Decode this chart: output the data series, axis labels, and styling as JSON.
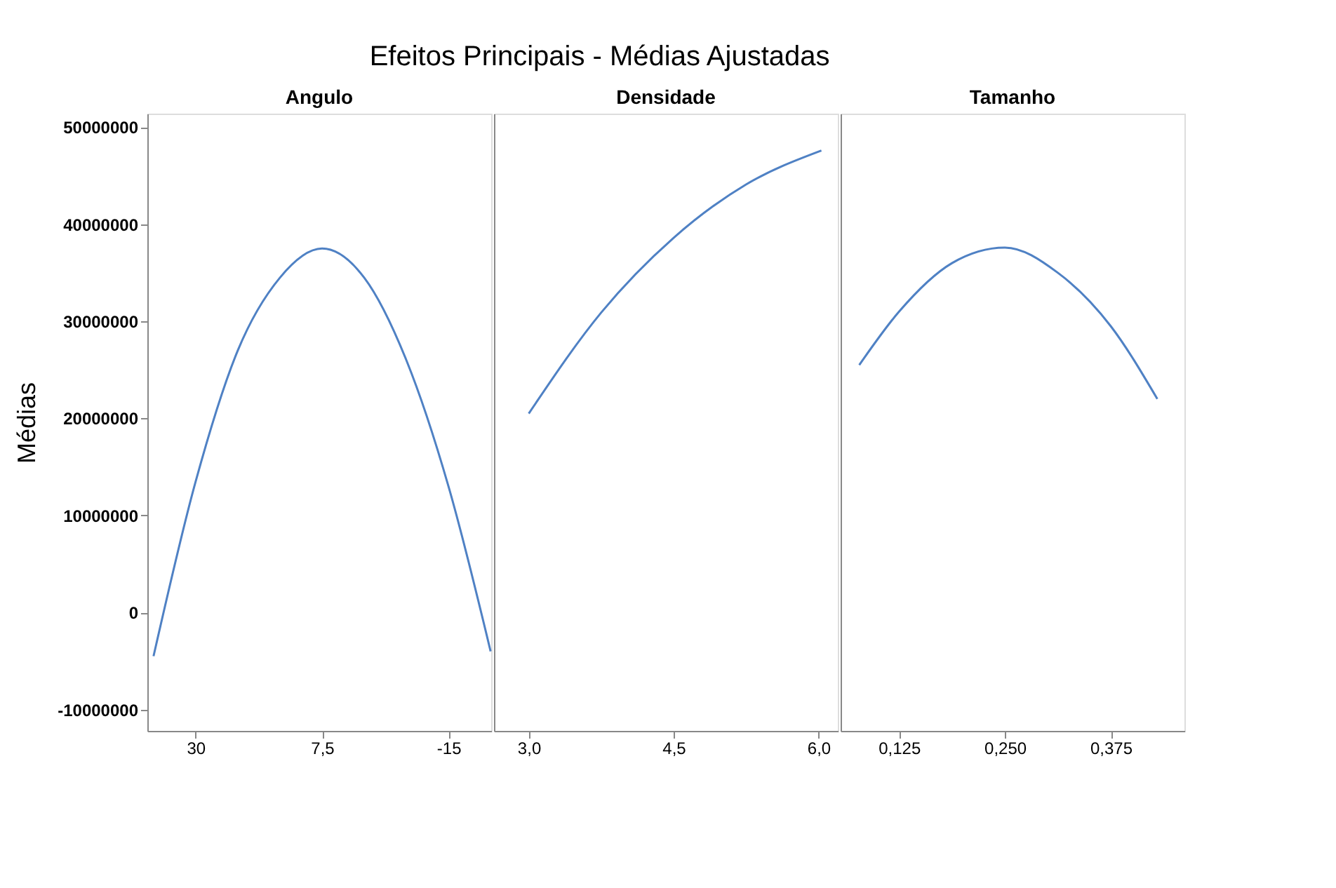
{
  "chart_data": [
    {
      "type": "line",
      "title": "Efeitos Principais - Médias Ajustadas",
      "subtitle": "Angulo",
      "ylabel": "Médias",
      "color": "#4f81c4",
      "grid": false,
      "line_style": "solid",
      "marker": "none",
      "x": [
        37.5,
        30,
        22.5,
        15,
        7.5,
        0,
        -7.5,
        -15,
        -22.5
      ],
      "values": [
        -4500000,
        13500000,
        27000000,
        34500000,
        37500000,
        34500000,
        26000000,
        13000000,
        -4000000
      ],
      "xlim": [
        38.6,
        -22.6
      ],
      "xticks": [
        30,
        {
          "value": 7.5,
          "label": "7,5"
        },
        -15
      ],
      "ylim": [
        -12200000,
        51400000
      ],
      "yticks": [
        -10000000,
        0,
        10000000,
        20000000,
        30000000,
        40000000,
        50000000
      ]
    },
    {
      "type": "line",
      "subtitle": "Densidade",
      "color": "#4f81c4",
      "grid": false,
      "line_style": "solid",
      "marker": "none",
      "tick_labels": "x",
      "x": [
        3.0,
        3.75,
        4.5,
        5.25,
        6.03
      ],
      "values": [
        20500000,
        30900000,
        38600000,
        44100000,
        47600000
      ],
      "xlim": [
        2.64,
        6.2
      ],
      "xticks": [
        {
          "value": 3.0,
          "label": "3,0"
        },
        {
          "value": 4.5,
          "label": "4,5"
        },
        {
          "value": 6.0,
          "label": "6,0"
        }
      ],
      "ylim": [
        -12200000,
        51400000
      ],
      "yticks": [
        -10000000,
        0,
        10000000,
        20000000,
        30000000,
        40000000,
        50000000
      ]
    },
    {
      "type": "line",
      "subtitle": "Tamanho",
      "color": "#4f81c4",
      "grid": false,
      "line_style": "solid",
      "marker": "none",
      "tick_labels": "x",
      "x": [
        0.078,
        0.125,
        0.1875,
        0.25,
        0.3125,
        0.375,
        0.43
      ],
      "values": [
        25500000,
        31000000,
        36000000,
        37600000,
        35000000,
        29500000,
        22000000
      ],
      "xlim": [
        0.056,
        0.462
      ],
      "xticks": [
        {
          "value": 0.125,
          "label": "0,125"
        },
        {
          "value": 0.25,
          "label": "0,250"
        },
        {
          "value": 0.375,
          "label": "0,375"
        }
      ],
      "ylim": [
        -12200000,
        51400000
      ],
      "yticks": [
        -10000000,
        0,
        10000000,
        20000000,
        30000000,
        40000000,
        50000000
      ]
    }
  ]
}
